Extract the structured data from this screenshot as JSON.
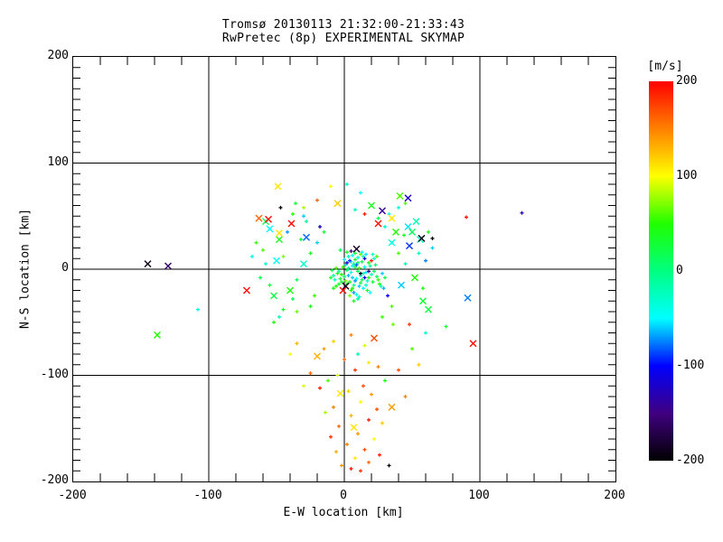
{
  "title": {
    "line1": "Tromsø 20130113 21:32:00-21:33:43",
    "line2": "RwPretec (8p) EXPERIMENTAL SKYMAP"
  },
  "chart_data": {
    "type": "scatter",
    "title": "Tromsø 20130113 21:32:00-21:33:43",
    "subtitle": "RwPretec (8p) EXPERIMENTAL SKYMAP",
    "xlabel": "E-W location [km]",
    "ylabel": "N-S location [km]",
    "xlim": [
      -200,
      200
    ],
    "ylim": [
      -200,
      200
    ],
    "x_ticks": [
      -200,
      -100,
      0,
      100,
      200
    ],
    "y_ticks": [
      200,
      100,
      0,
      -100,
      -200
    ],
    "grid_lines": [
      -100,
      0,
      100
    ],
    "x_minor_step": 20,
    "y_minor_step": 10,
    "grid": "on",
    "background": "#ffffff",
    "axis_color": "#000000",
    "colorbar": {
      "title": "[m/s]",
      "min": -200,
      "max": 200,
      "ticks": [
        200,
        100,
        0,
        -100,
        -200
      ],
      "stops": [
        {
          "v": -200,
          "c": "#000000"
        },
        {
          "v": -150,
          "c": "#400080"
        },
        {
          "v": -100,
          "c": "#0000ff"
        },
        {
          "v": -50,
          "c": "#00ffff"
        },
        {
          "v": 0,
          "c": "#00ff80"
        },
        {
          "v": 50,
          "c": "#20ff00"
        },
        {
          "v": 100,
          "c": "#ffff00"
        },
        {
          "v": 150,
          "c": "#ff8000"
        },
        {
          "v": 200,
          "c": "#ff0000"
        }
      ]
    },
    "point_format": [
      "x_km",
      "y_km",
      "velocity_ms",
      "marker (2=large X, 1=small +)"
    ],
    "points": [
      [
        2,
        -1,
        10,
        1
      ],
      [
        5,
        -3,
        -40,
        1
      ],
      [
        8,
        2,
        30,
        1
      ],
      [
        1,
        4,
        -20,
        1
      ],
      [
        -2,
        -5,
        50,
        1
      ],
      [
        6,
        -8,
        -60,
        1
      ],
      [
        10,
        -2,
        20,
        1
      ],
      [
        3,
        1,
        -10,
        1
      ],
      [
        7,
        5,
        0,
        1
      ],
      [
        12,
        -6,
        -30,
        1
      ],
      [
        4,
        -12,
        40,
        1
      ],
      [
        9,
        -9,
        -50,
        1
      ],
      [
        0,
        -7,
        15,
        1
      ],
      [
        14,
        -4,
        -25,
        1
      ],
      [
        6,
        3,
        -45,
        1
      ],
      [
        11,
        1,
        60,
        1
      ],
      [
        -4,
        -2,
        -15,
        1
      ],
      [
        2,
        -14,
        35,
        1
      ],
      [
        8,
        -11,
        -70,
        1
      ],
      [
        13,
        -10,
        25,
        1
      ],
      [
        5,
        7,
        -35,
        1
      ],
      [
        -1,
        2,
        55,
        1
      ],
      [
        16,
        -3,
        -55,
        1
      ],
      [
        10,
        6,
        5,
        1
      ],
      [
        3,
        -6,
        -65,
        1
      ],
      [
        18,
        -8,
        45,
        1
      ],
      [
        7,
        -15,
        -5,
        1
      ],
      [
        -3,
        -9,
        30,
        1
      ],
      [
        15,
        2,
        -40,
        1
      ],
      [
        1,
        -11,
        70,
        1
      ],
      [
        20,
        -5,
        -20,
        1
      ],
      [
        9,
        4,
        -80,
        1
      ],
      [
        12,
        -13,
        20,
        1
      ],
      [
        -5,
        -4,
        40,
        1
      ],
      [
        17,
        -11,
        -30,
        1
      ],
      [
        4,
        8,
        -90,
        1
      ],
      [
        22,
        -2,
        10,
        1
      ],
      [
        6,
        -18,
        50,
        1
      ],
      [
        11,
        -16,
        -60,
        1
      ],
      [
        -2,
        -12,
        25,
        1
      ],
      [
        19,
        3,
        -10,
        1
      ],
      [
        8,
        9,
        35,
        1
      ],
      [
        14,
        -18,
        -45,
        1
      ],
      [
        2,
        6,
        -110,
        1
      ],
      [
        24,
        -7,
        15,
        1
      ],
      [
        -6,
        1,
        60,
        1
      ],
      [
        16,
        -15,
        -25,
        1
      ],
      [
        5,
        -20,
        45,
        1
      ],
      [
        10,
        11,
        -35,
        1
      ],
      [
        21,
        -12,
        30,
        1
      ],
      [
        0,
        9,
        -55,
        1
      ],
      [
        13,
        7,
        20,
        1
      ],
      [
        -8,
        -6,
        -15,
        1
      ],
      [
        18,
        6,
        40,
        1
      ],
      [
        7,
        -22,
        -70,
        1
      ],
      [
        25,
        -10,
        55,
        1
      ],
      [
        3,
        12,
        -20,
        1
      ],
      [
        15,
        10,
        -120,
        1
      ],
      [
        -4,
        -14,
        35,
        1
      ],
      [
        23,
        4,
        10,
        1
      ],
      [
        9,
        -24,
        -40,
        1
      ],
      [
        12,
        14,
        65,
        1
      ],
      [
        -7,
        -10,
        -25,
        1
      ],
      [
        20,
        8,
        190,
        1
      ],
      [
        6,
        13,
        -50,
        1
      ],
      [
        17,
        -20,
        30,
        1
      ],
      [
        1,
        -16,
        -190,
        2
      ],
      [
        26,
        -14,
        45,
        1
      ],
      [
        -9,
        -1,
        20,
        1
      ],
      [
        11,
        -26,
        -30,
        1
      ],
      [
        28,
        -4,
        -60,
        1
      ],
      [
        4,
        -25,
        70,
        1
      ],
      [
        14,
        12,
        -15,
        1
      ],
      [
        -6,
        -16,
        50,
        1
      ],
      [
        22,
        10,
        -35,
        1
      ],
      [
        8,
        15,
        25,
        1
      ],
      [
        19,
        -22,
        -45,
        1
      ],
      [
        2,
        16,
        40,
        1
      ],
      [
        27,
        -16,
        -20,
        1
      ],
      [
        -10,
        -8,
        30,
        1
      ],
      [
        16,
        14,
        -55,
        1
      ],
      [
        5,
        17,
        -150,
        1
      ],
      [
        24,
        12,
        60,
        1
      ],
      [
        10,
        -28,
        -10,
        1
      ],
      [
        -8,
        -18,
        45,
        1
      ],
      [
        30,
        -8,
        20,
        1
      ],
      [
        13,
        16,
        -40,
        1
      ],
      [
        7,
        -30,
        35,
        1
      ],
      [
        21,
        14,
        -25,
        1
      ],
      [
        -3,
        18,
        15,
        1
      ],
      [
        29,
        -18,
        -65,
        1
      ],
      [
        9,
        19,
        -185,
        2
      ],
      [
        -1,
        -20,
        195,
        2
      ],
      [
        12,
        -4,
        -195,
        1
      ],
      [
        18,
        -2,
        -145,
        1
      ],
      [
        15,
        -8,
        -100,
        1
      ],
      [
        -20,
        25,
        -60,
        1
      ],
      [
        -25,
        15,
        40,
        1
      ],
      [
        -30,
        5,
        -30,
        2
      ],
      [
        -22,
        -25,
        55,
        1
      ],
      [
        -35,
        -10,
        20,
        1
      ],
      [
        -28,
        30,
        -80,
        2
      ],
      [
        35,
        25,
        -40,
        2
      ],
      [
        40,
        15,
        60,
        1
      ],
      [
        -15,
        35,
        30,
        1
      ],
      [
        32,
        -25,
        -100,
        1
      ],
      [
        -40,
        -20,
        45,
        2
      ],
      [
        45,
        5,
        -20,
        1
      ],
      [
        -18,
        40,
        -130,
        1
      ],
      [
        38,
        35,
        50,
        2
      ],
      [
        -32,
        28,
        25,
        1
      ],
      [
        42,
        -15,
        -60,
        2
      ],
      [
        -45,
        12,
        70,
        1
      ],
      [
        30,
        40,
        -30,
        1
      ],
      [
        -25,
        -35,
        40,
        1
      ],
      [
        48,
        22,
        -90,
        2
      ],
      [
        -38,
        -28,
        15,
        1
      ],
      [
        35,
        -35,
        60,
        1
      ],
      [
        -50,
        8,
        -45,
        2
      ],
      [
        44,
        32,
        35,
        1
      ],
      [
        -28,
        45,
        -15,
        1
      ],
      [
        52,
        -8,
        50,
        2
      ],
      [
        -42,
        35,
        -70,
        1
      ],
      [
        25,
        48,
        20,
        1
      ],
      [
        -55,
        -15,
        30,
        1
      ],
      [
        47,
        40,
        -55,
        2
      ],
      [
        -35,
        -40,
        65,
        1
      ],
      [
        55,
        15,
        -25,
        1
      ],
      [
        -48,
        28,
        40,
        2
      ],
      [
        28,
        -45,
        55,
        1
      ],
      [
        -58,
        5,
        -35,
        1
      ],
      [
        50,
        35,
        15,
        2
      ],
      [
        -30,
        50,
        -60,
        1
      ],
      [
        58,
        -18,
        45,
        1
      ],
      [
        -52,
        -25,
        25,
        2
      ],
      [
        33,
        52,
        -40,
        1
      ],
      [
        -60,
        18,
        60,
        1
      ],
      [
        53,
        45,
        -20,
        2
      ],
      [
        -45,
        -38,
        35,
        1
      ],
      [
        60,
        8,
        -75,
        1
      ],
      [
        -38,
        52,
        50,
        1
      ],
      [
        56,
        28,
        -30,
        2
      ],
      [
        -62,
        -8,
        20,
        1
      ],
      [
        36,
        -52,
        65,
        1
      ],
      [
        -55,
        38,
        -50,
        2
      ],
      [
        62,
        35,
        40,
        1
      ],
      [
        -48,
        -45,
        -20,
        1
      ],
      [
        58,
        -30,
        30,
        2
      ],
      [
        -65,
        25,
        55,
        1
      ],
      [
        40,
        58,
        -35,
        1
      ],
      [
        -58,
        45,
        15,
        2
      ],
      [
        65,
        20,
        -60,
        1
      ],
      [
        -52,
        -50,
        45,
        1
      ],
      [
        62,
        -38,
        25,
        2
      ],
      [
        -68,
        12,
        -40,
        1
      ],
      [
        45,
        62,
        60,
        1
      ],
      [
        -10,
        78,
        100,
        1
      ],
      [
        2,
        80,
        -30,
        1
      ],
      [
        -5,
        62,
        120,
        2
      ],
      [
        12,
        72,
        -50,
        1
      ],
      [
        20,
        60,
        40,
        2
      ],
      [
        -20,
        65,
        160,
        1
      ],
      [
        28,
        55,
        -140,
        2
      ],
      [
        -30,
        58,
        80,
        1
      ],
      [
        8,
        56,
        -20,
        1
      ],
      [
        35,
        48,
        110,
        2
      ],
      [
        -36,
        62,
        30,
        1
      ],
      [
        15,
        52,
        190,
        1
      ],
      [
        41,
        69,
        60,
        2
      ],
      [
        47,
        67,
        -120,
        2
      ],
      [
        -49,
        78,
        110,
        2
      ],
      [
        -47,
        58,
        -195,
        1
      ],
      [
        -39,
        43,
        195,
        2
      ],
      [
        -48,
        34,
        110,
        2
      ],
      [
        -63,
        48,
        160,
        2
      ],
      [
        -56,
        47,
        195,
        2
      ],
      [
        57,
        29,
        -195,
        2
      ],
      [
        65,
        29,
        -195,
        1
      ],
      [
        25,
        43,
        195,
        2
      ],
      [
        90,
        49,
        195,
        1
      ],
      [
        131,
        53,
        -130,
        1
      ],
      [
        5,
        -62,
        150,
        1
      ],
      [
        -8,
        -68,
        120,
        1
      ],
      [
        15,
        -72,
        90,
        1
      ],
      [
        22,
        -65,
        170,
        2
      ],
      [
        -15,
        -75,
        140,
        1
      ],
      [
        10,
        -80,
        -20,
        1
      ],
      [
        0,
        -85,
        160,
        1
      ],
      [
        18,
        -88,
        110,
        1
      ],
      [
        -20,
        -82,
        130,
        2
      ],
      [
        8,
        -95,
        180,
        1
      ],
      [
        -5,
        -100,
        90,
        1
      ],
      [
        25,
        -92,
        150,
        1
      ],
      [
        -12,
        -105,
        60,
        1
      ],
      [
        14,
        -110,
        170,
        1
      ],
      [
        3,
        -115,
        120,
        1
      ],
      [
        -3,
        -117,
        110,
        2
      ],
      [
        20,
        -118,
        140,
        1
      ],
      [
        -18,
        -112,
        190,
        1
      ],
      [
        30,
        -105,
        40,
        1
      ],
      [
        -25,
        -98,
        160,
        1
      ],
      [
        12,
        -125,
        100,
        1
      ],
      [
        -8,
        -130,
        150,
        1
      ],
      [
        24,
        -132,
        170,
        1
      ],
      [
        5,
        -138,
        130,
        1
      ],
      [
        -14,
        -135,
        80,
        1
      ],
      [
        18,
        -142,
        190,
        1
      ],
      [
        7,
        -149,
        110,
        2
      ],
      [
        -4,
        -148,
        160,
        1
      ],
      [
        28,
        -145,
        120,
        1
      ],
      [
        10,
        -155,
        140,
        1
      ],
      [
        -10,
        -158,
        180,
        1
      ],
      [
        22,
        -160,
        100,
        1
      ],
      [
        2,
        -165,
        150,
        1
      ],
      [
        15,
        -170,
        170,
        1
      ],
      [
        -6,
        -172,
        130,
        1
      ],
      [
        26,
        -175,
        190,
        1
      ],
      [
        8,
        -178,
        110,
        1
      ],
      [
        33,
        -185,
        -195,
        1
      ],
      [
        5,
        -188,
        195,
        1
      ],
      [
        18,
        -182,
        160,
        1
      ],
      [
        -2,
        -185,
        140,
        1
      ],
      [
        12,
        -190,
        180,
        1
      ],
      [
        -145,
        5,
        -190,
        2
      ],
      [
        -130,
        3,
        -160,
        2
      ],
      [
        -138,
        -62,
        50,
        2
      ],
      [
        -108,
        -38,
        -45,
        1
      ],
      [
        91,
        -27,
        -75,
        2
      ],
      [
        75,
        -54,
        30,
        1
      ],
      [
        95,
        -70,
        195,
        2
      ],
      [
        -72,
        -20,
        195,
        2
      ],
      [
        55,
        -90,
        120,
        1
      ],
      [
        45,
        -120,
        150,
        1
      ],
      [
        -40,
        -80,
        100,
        1
      ],
      [
        50,
        -75,
        60,
        1
      ],
      [
        60,
        -60,
        -30,
        1
      ],
      [
        -35,
        -70,
        130,
        1
      ],
      [
        40,
        -95,
        170,
        1
      ],
      [
        -30,
        -110,
        90,
        1
      ],
      [
        35,
        -130,
        140,
        2
      ],
      [
        48,
        -52,
        180,
        1
      ]
    ]
  }
}
